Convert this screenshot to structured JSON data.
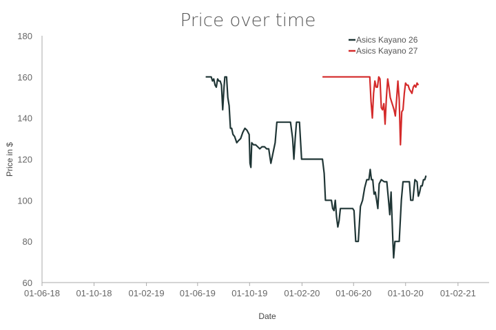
{
  "chart_data": {
    "type": "line",
    "title": "Price over time",
    "xlabel": "Date",
    "ylabel": "Price in $",
    "ylim": [
      60,
      180
    ],
    "yticks": [
      "60",
      "80",
      "100",
      "120",
      "140",
      "160",
      "180"
    ],
    "xlim": [
      "2018-06-01",
      "2021-04-15"
    ],
    "xticks": [
      {
        "date": "2018-06-01",
        "label": "01-06-18"
      },
      {
        "date": "2018-10-01",
        "label": "01-10-18"
      },
      {
        "date": "2019-02-01",
        "label": "01-02-19"
      },
      {
        "date": "2019-06-01",
        "label": "01-06-19"
      },
      {
        "date": "2019-10-01",
        "label": "01-10-19"
      },
      {
        "date": "2020-02-01",
        "label": "01-02-20"
      },
      {
        "date": "2020-06-01",
        "label": "01-06-20"
      },
      {
        "date": "2020-10-01",
        "label": "01-10-20"
      },
      {
        "date": "2021-02-01",
        "label": "01-02-21"
      }
    ],
    "grid": false,
    "legend": "top-right",
    "series": [
      {
        "name": "Asics Kayano 26",
        "color": "#1f3535",
        "points": [
          [
            "2019-06-20",
            160
          ],
          [
            "2019-07-03",
            160
          ],
          [
            "2019-07-06",
            158
          ],
          [
            "2019-07-09",
            159
          ],
          [
            "2019-07-12",
            156
          ],
          [
            "2019-07-15",
            155
          ],
          [
            "2019-07-18",
            159
          ],
          [
            "2019-07-21",
            158
          ],
          [
            "2019-07-24",
            158
          ],
          [
            "2019-07-27",
            156
          ],
          [
            "2019-07-30",
            144
          ],
          [
            "2019-08-02",
            155
          ],
          [
            "2019-08-04",
            160
          ],
          [
            "2019-08-08",
            160
          ],
          [
            "2019-08-11",
            150
          ],
          [
            "2019-08-14",
            146
          ],
          [
            "2019-08-17",
            135
          ],
          [
            "2019-08-20",
            135
          ],
          [
            "2019-08-23",
            132
          ],
          [
            "2019-08-27",
            131
          ],
          [
            "2019-09-01",
            128
          ],
          [
            "2019-09-05",
            129
          ],
          [
            "2019-09-10",
            130
          ],
          [
            "2019-09-15",
            133
          ],
          [
            "2019-09-20",
            135
          ],
          [
            "2019-09-25",
            134
          ],
          [
            "2019-09-30",
            132
          ],
          [
            "2019-10-02",
            118
          ],
          [
            "2019-10-04",
            116
          ],
          [
            "2019-10-06",
            128
          ],
          [
            "2019-10-10",
            127
          ],
          [
            "2019-10-15",
            127
          ],
          [
            "2019-10-20",
            126
          ],
          [
            "2019-10-25",
            125
          ],
          [
            "2019-10-30",
            126
          ],
          [
            "2019-11-05",
            126
          ],
          [
            "2019-11-10",
            125
          ],
          [
            "2019-11-15",
            125
          ],
          [
            "2019-11-20",
            118
          ],
          [
            "2019-11-25",
            123
          ],
          [
            "2019-11-30",
            128
          ],
          [
            "2019-12-04",
            138
          ],
          [
            "2019-12-15",
            138
          ],
          [
            "2019-12-25",
            138
          ],
          [
            "2020-01-05",
            138
          ],
          [
            "2020-01-10",
            130
          ],
          [
            "2020-01-13",
            120
          ],
          [
            "2020-01-16",
            130
          ],
          [
            "2020-01-19",
            138
          ],
          [
            "2020-01-26",
            138
          ],
          [
            "2020-01-31",
            120
          ],
          [
            "2020-02-15",
            120
          ],
          [
            "2020-03-01",
            120
          ],
          [
            "2020-03-15",
            120
          ],
          [
            "2020-03-20",
            120
          ],
          [
            "2020-03-24",
            113
          ],
          [
            "2020-03-27",
            100
          ],
          [
            "2020-04-05",
            100
          ],
          [
            "2020-04-10",
            100
          ],
          [
            "2020-04-13",
            96
          ],
          [
            "2020-04-16",
            95
          ],
          [
            "2020-04-19",
            100
          ],
          [
            "2020-04-22",
            92
          ],
          [
            "2020-04-25",
            87
          ],
          [
            "2020-04-28",
            90
          ],
          [
            "2020-05-01",
            96
          ],
          [
            "2020-05-10",
            96
          ],
          [
            "2020-05-20",
            96
          ],
          [
            "2020-05-30",
            96
          ],
          [
            "2020-06-02",
            95
          ],
          [
            "2020-06-06",
            80
          ],
          [
            "2020-06-12",
            80
          ],
          [
            "2020-06-17",
            97
          ],
          [
            "2020-06-22",
            100
          ],
          [
            "2020-06-27",
            106
          ],
          [
            "2020-07-02",
            110
          ],
          [
            "2020-07-07",
            110
          ],
          [
            "2020-07-10",
            115
          ],
          [
            "2020-07-13",
            110
          ],
          [
            "2020-07-16",
            110
          ],
          [
            "2020-07-19",
            103
          ],
          [
            "2020-07-22",
            104
          ],
          [
            "2020-07-25",
            100
          ],
          [
            "2020-07-28",
            96
          ],
          [
            "2020-07-31",
            108
          ],
          [
            "2020-08-05",
            110
          ],
          [
            "2020-08-12",
            109
          ],
          [
            "2020-08-18",
            109
          ],
          [
            "2020-08-22",
            100
          ],
          [
            "2020-08-25",
            93
          ],
          [
            "2020-08-28",
            104
          ],
          [
            "2020-09-01",
            81
          ],
          [
            "2020-09-03",
            72
          ],
          [
            "2020-09-06",
            80
          ],
          [
            "2020-09-16",
            80
          ],
          [
            "2020-09-21",
            100
          ],
          [
            "2020-09-25",
            109
          ],
          [
            "2020-10-05",
            109
          ],
          [
            "2020-10-10",
            109
          ],
          [
            "2020-10-13",
            100
          ],
          [
            "2020-10-18",
            100
          ],
          [
            "2020-10-23",
            110
          ],
          [
            "2020-10-28",
            109
          ],
          [
            "2020-10-31",
            102
          ],
          [
            "2020-11-03",
            104
          ],
          [
            "2020-11-06",
            107
          ],
          [
            "2020-11-09",
            107
          ],
          [
            "2020-11-12",
            110
          ],
          [
            "2020-11-15",
            110
          ],
          [
            "2020-11-18",
            112
          ]
        ]
      },
      {
        "name": "Asics Kayano 27",
        "color": "#d42a2a",
        "points": [
          [
            "2020-03-20",
            160
          ],
          [
            "2020-04-15",
            160
          ],
          [
            "2020-05-15",
            160
          ],
          [
            "2020-06-15",
            160
          ],
          [
            "2020-07-05",
            160
          ],
          [
            "2020-07-09",
            160
          ],
          [
            "2020-07-12",
            148
          ],
          [
            "2020-07-15",
            140
          ],
          [
            "2020-07-18",
            152
          ],
          [
            "2020-07-21",
            158
          ],
          [
            "2020-07-24",
            155
          ],
          [
            "2020-07-27",
            155
          ],
          [
            "2020-07-30",
            160
          ],
          [
            "2020-08-02",
            159
          ],
          [
            "2020-08-05",
            145
          ],
          [
            "2020-08-08",
            144
          ],
          [
            "2020-08-11",
            147
          ],
          [
            "2020-08-14",
            137
          ],
          [
            "2020-08-17",
            150
          ],
          [
            "2020-08-20",
            159
          ],
          [
            "2020-08-23",
            155
          ],
          [
            "2020-08-26",
            150
          ],
          [
            "2020-08-29",
            148
          ],
          [
            "2020-09-01",
            146
          ],
          [
            "2020-09-04",
            144
          ],
          [
            "2020-09-07",
            141
          ],
          [
            "2020-09-10",
            149
          ],
          [
            "2020-09-13",
            158
          ],
          [
            "2020-09-16",
            149
          ],
          [
            "2020-09-19",
            127
          ],
          [
            "2020-09-22",
            143
          ],
          [
            "2020-09-25",
            144
          ],
          [
            "2020-09-28",
            152
          ],
          [
            "2020-10-01",
            157
          ],
          [
            "2020-10-04",
            156
          ],
          [
            "2020-10-07",
            156
          ],
          [
            "2020-10-10",
            154
          ],
          [
            "2020-10-13",
            153
          ],
          [
            "2020-10-16",
            152
          ],
          [
            "2020-10-19",
            155
          ],
          [
            "2020-10-22",
            156
          ],
          [
            "2020-10-25",
            155
          ],
          [
            "2020-10-28",
            157
          ],
          [
            "2020-10-31",
            156
          ]
        ]
      }
    ]
  }
}
